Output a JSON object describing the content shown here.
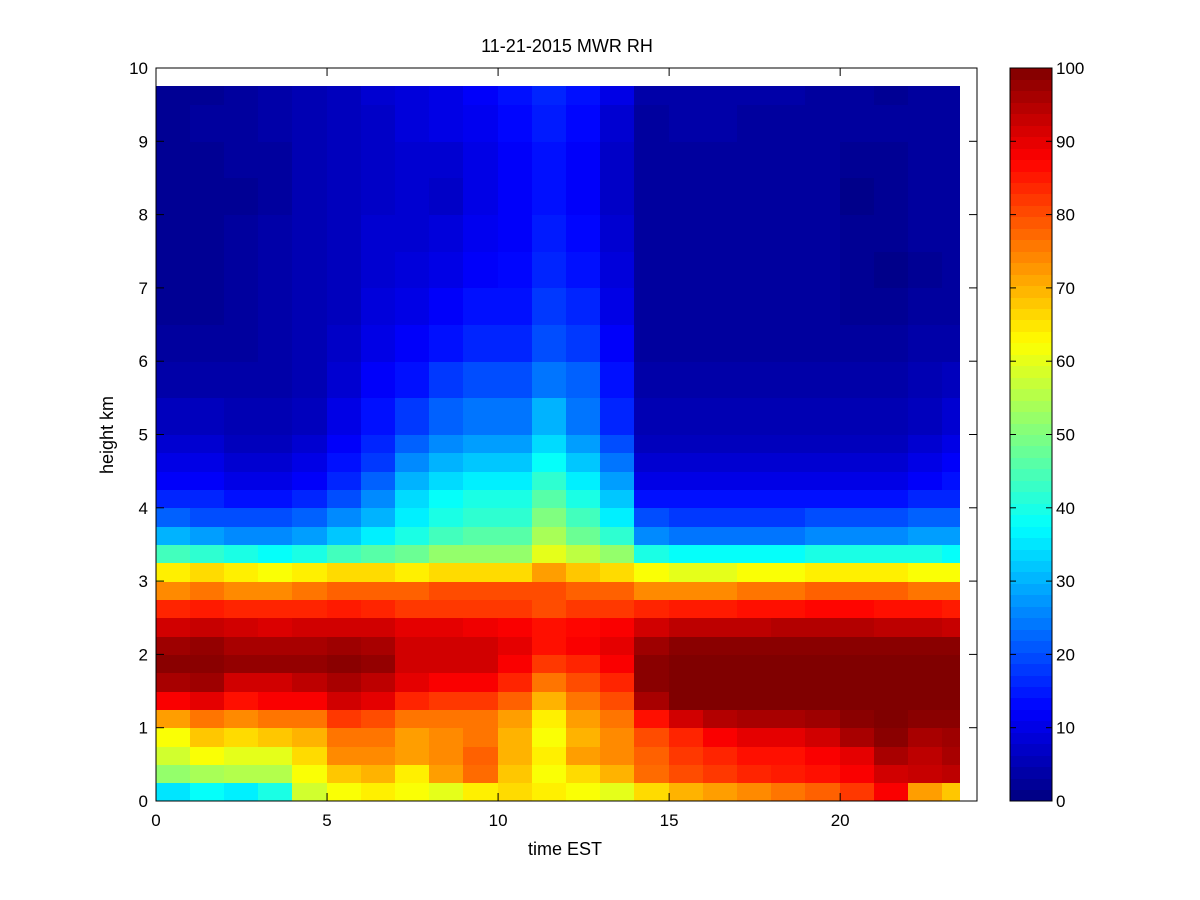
{
  "chart_data": {
    "type": "heatmap",
    "title": "11-21-2015 MWR RH",
    "xlabel": "time EST",
    "ylabel": "height km",
    "xlim": [
      0,
      24
    ],
    "ylim": [
      0,
      10
    ],
    "x_ticks": [
      "0",
      "5",
      "10",
      "15",
      "20"
    ],
    "y_ticks": [
      "0",
      "1",
      "2",
      "3",
      "4",
      "5",
      "6",
      "7",
      "8",
      "9",
      "10"
    ],
    "colorbar": {
      "colormap": "jet",
      "range": [
        0,
        100
      ],
      "ticks": [
        "0",
        "10",
        "20",
        "30",
        "40",
        "50",
        "60",
        "70",
        "80",
        "90",
        "100"
      ]
    },
    "x": [
      0,
      1,
      2,
      3,
      4,
      5,
      6,
      7,
      8,
      9,
      10,
      11,
      12,
      13,
      14,
      15,
      16,
      17,
      18,
      19,
      20,
      21,
      22,
      23
    ],
    "y": [
      0,
      0.25,
      0.5,
      0.75,
      1,
      1.25,
      1.5,
      1.75,
      2,
      2.25,
      2.5,
      2.75,
      3,
      3.25,
      3.5,
      3.75,
      4,
      4.25,
      4.5,
      4.75,
      5,
      5.5,
      6,
      6.5,
      7,
      7.5,
      8,
      8.5,
      9,
      9.5
    ],
    "values": [
      [
        35,
        38,
        36,
        40,
        58,
        62,
        64,
        62,
        60,
        64,
        66,
        64,
        62,
        60,
        66,
        70,
        72,
        74,
        76,
        78,
        82,
        88,
        72,
        68
      ],
      [
        52,
        54,
        55,
        55,
        62,
        68,
        70,
        64,
        72,
        77,
        68,
        62,
        66,
        70,
        77,
        80,
        82,
        84,
        85,
        86,
        88,
        92,
        93,
        94
      ],
      [
        58,
        62,
        60,
        60,
        66,
        74,
        74,
        72,
        74,
        78,
        70,
        64,
        72,
        74,
        78,
        82,
        84,
        86,
        86,
        88,
        90,
        96,
        94,
        96
      ],
      [
        62,
        68,
        66,
        68,
        70,
        76,
        76,
        72,
        74,
        76,
        70,
        62,
        70,
        74,
        80,
        84,
        88,
        90,
        90,
        92,
        96,
        99,
        96,
        97
      ],
      [
        72,
        76,
        74,
        76,
        76,
        82,
        80,
        76,
        76,
        76,
        72,
        64,
        72,
        76,
        86,
        92,
        95,
        96,
        96,
        97,
        99,
        100,
        99,
        99
      ],
      [
        88,
        90,
        86,
        88,
        88,
        92,
        90,
        84,
        82,
        82,
        78,
        70,
        76,
        80,
        96,
        100,
        100,
        100,
        100,
        100,
        100,
        100,
        100,
        100
      ],
      [
        96,
        97,
        92,
        92,
        94,
        96,
        94,
        90,
        88,
        88,
        84,
        76,
        80,
        84,
        99,
        100,
        100,
        100,
        100,
        100,
        100,
        100,
        100,
        100
      ],
      [
        99,
        99,
        98,
        98,
        98,
        99,
        98,
        92,
        92,
        92,
        88,
        82,
        84,
        88,
        99,
        100,
        100,
        100,
        100,
        100,
        100,
        100,
        100,
        100
      ],
      [
        97,
        98,
        96,
        96,
        96,
        97,
        96,
        92,
        92,
        92,
        90,
        86,
        88,
        90,
        97,
        99,
        99,
        99,
        99,
        99,
        99,
        99,
        99,
        99
      ],
      [
        92,
        93,
        92,
        91,
        92,
        92,
        92,
        90,
        90,
        89,
        88,
        86,
        87,
        88,
        92,
        94,
        94,
        94,
        95,
        95,
        95,
        94,
        94,
        93
      ],
      [
        84,
        85,
        84,
        84,
        84,
        85,
        84,
        82,
        82,
        82,
        82,
        80,
        82,
        82,
        84,
        85,
        85,
        86,
        86,
        87,
        87,
        86,
        86,
        85
      ],
      [
        74,
        76,
        74,
        74,
        76,
        78,
        78,
        78,
        80,
        80,
        80,
        80,
        78,
        78,
        74,
        74,
        74,
        76,
        76,
        78,
        78,
        78,
        76,
        76
      ],
      [
        64,
        66,
        64,
        62,
        64,
        66,
        66,
        64,
        66,
        66,
        66,
        72,
        68,
        66,
        62,
        60,
        60,
        62,
        62,
        64,
        64,
        64,
        62,
        62
      ],
      [
        44,
        42,
        40,
        38,
        40,
        44,
        46,
        48,
        52,
        52,
        52,
        60,
        56,
        52,
        40,
        38,
        38,
        38,
        38,
        40,
        40,
        40,
        40,
        38
      ],
      [
        30,
        28,
        26,
        26,
        28,
        32,
        36,
        40,
        44,
        46,
        46,
        54,
        48,
        42,
        26,
        24,
        24,
        24,
        24,
        26,
        26,
        26,
        28,
        28
      ],
      [
        22,
        20,
        20,
        20,
        22,
        26,
        30,
        36,
        40,
        42,
        42,
        50,
        44,
        36,
        20,
        18,
        18,
        18,
        18,
        20,
        20,
        20,
        22,
        22
      ],
      [
        16,
        16,
        14,
        14,
        16,
        20,
        26,
        34,
        38,
        40,
        40,
        46,
        40,
        32,
        14,
        14,
        14,
        14,
        14,
        14,
        14,
        14,
        16,
        16
      ],
      [
        12,
        12,
        10,
        10,
        12,
        16,
        22,
        30,
        34,
        36,
        36,
        42,
        36,
        28,
        10,
        10,
        10,
        10,
        10,
        10,
        10,
        10,
        12,
        14
      ],
      [
        10,
        10,
        8,
        8,
        10,
        14,
        18,
        26,
        30,
        32,
        32,
        38,
        32,
        24,
        8,
        8,
        8,
        8,
        8,
        8,
        8,
        8,
        10,
        12
      ],
      [
        8,
        8,
        6,
        6,
        8,
        12,
        16,
        22,
        26,
        28,
        28,
        34,
        28,
        20,
        6,
        6,
        6,
        6,
        6,
        6,
        6,
        6,
        8,
        10
      ],
      [
        6,
        6,
        5,
        5,
        6,
        10,
        14,
        18,
        22,
        24,
        24,
        30,
        24,
        16,
        5,
        5,
        5,
        5,
        5,
        5,
        5,
        5,
        6,
        8
      ],
      [
        4,
        4,
        4,
        4,
        5,
        8,
        12,
        14,
        18,
        20,
        20,
        24,
        22,
        14,
        4,
        4,
        4,
        4,
        4,
        4,
        4,
        4,
        5,
        6
      ],
      [
        3,
        3,
        3,
        4,
        5,
        7,
        10,
        12,
        14,
        16,
        16,
        20,
        18,
        12,
        3,
        3,
        3,
        3,
        3,
        3,
        3,
        3,
        4,
        4
      ],
      [
        2,
        2,
        3,
        4,
        5,
        6,
        9,
        10,
        12,
        14,
        14,
        18,
        16,
        10,
        3,
        3,
        3,
        3,
        3,
        3,
        2,
        2,
        3,
        3
      ],
      [
        2,
        2,
        3,
        4,
        5,
        6,
        8,
        9,
        10,
        12,
        13,
        16,
        14,
        9,
        3,
        3,
        3,
        3,
        3,
        3,
        2,
        1,
        2,
        3
      ],
      [
        2,
        2,
        3,
        4,
        5,
        6,
        8,
        8,
        9,
        11,
        12,
        15,
        13,
        8,
        3,
        3,
        3,
        3,
        3,
        3,
        2,
        2,
        3,
        3
      ],
      [
        2,
        2,
        2,
        3,
        5,
        6,
        7,
        8,
        7,
        10,
        12,
        14,
        12,
        7,
        3,
        3,
        3,
        3,
        3,
        3,
        1,
        2,
        3,
        3
      ],
      [
        2,
        2,
        3,
        3,
        5,
        6,
        7,
        8,
        8,
        10,
        12,
        14,
        12,
        7,
        3,
        3,
        3,
        3,
        3,
        3,
        2,
        2,
        3,
        3
      ],
      [
        2,
        3,
        3,
        4,
        5,
        6,
        7,
        9,
        10,
        11,
        13,
        15,
        13,
        8,
        3,
        4,
        4,
        3,
        3,
        3,
        3,
        3,
        3,
        3
      ],
      [
        2,
        2,
        3,
        4,
        5,
        6,
        8,
        9,
        10,
        12,
        14,
        16,
        14,
        10,
        4,
        4,
        4,
        4,
        4,
        3,
        3,
        2,
        3,
        3
      ]
    ]
  }
}
